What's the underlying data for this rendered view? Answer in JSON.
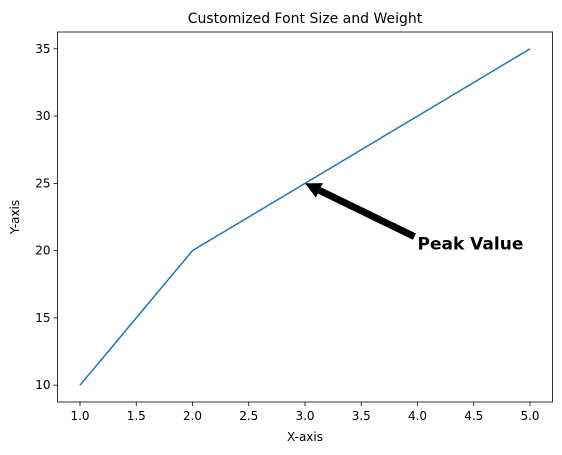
{
  "chart_data": {
    "type": "line",
    "title": "Customized Font Size and Weight",
    "x_label": "X-axis",
    "y_label": "Y-axis",
    "x": [
      1,
      2,
      3,
      4,
      5
    ],
    "series": [
      {
        "name": "line",
        "color": "#1f77b4",
        "values": [
          10,
          20,
          25,
          30,
          35
        ]
      }
    ],
    "xlim": [
      0.8,
      5.2
    ],
    "xticks": [
      1.0,
      1.5,
      2.0,
      2.5,
      3.0,
      3.5,
      4.0,
      4.5,
      5.0
    ],
    "ylim": [
      8.75,
      36.25
    ],
    "yticks": [
      10,
      15,
      20,
      25,
      30,
      35
    ],
    "annotations": [
      {
        "text": "Peak Value",
        "xy": [
          3,
          25
        ],
        "xytext": [
          4,
          20
        ]
      }
    ]
  }
}
